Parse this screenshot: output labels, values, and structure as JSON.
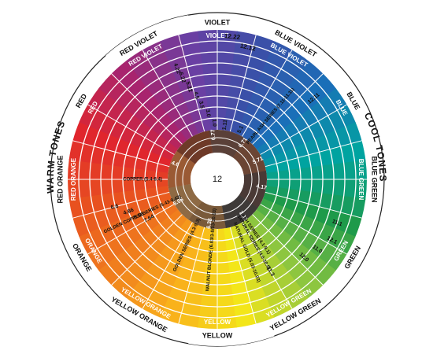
{
  "tone_groups": [
    {
      "id": "warm",
      "label": "WARM TONES"
    },
    {
      "id": "cool",
      "label": "COOL TONES"
    }
  ],
  "sectors": [
    {
      "id": "violet",
      "label": "VIOLET",
      "color": "#6a3fa3",
      "label_color": "#ffffff"
    },
    {
      "id": "blue-violet",
      "label": "BLUE VIOLET",
      "color": "#3a50a8",
      "label_color": "#ffffff"
    },
    {
      "id": "blue",
      "label": "BLUE",
      "color": "#1a6fb8",
      "label_color": "#ffffff"
    },
    {
      "id": "blue-green",
      "label": "BLUE GREEN",
      "color": "#00a3a0",
      "label_color": "#ffffff"
    },
    {
      "id": "green",
      "label": "GREEN",
      "color": "#1e9a4a",
      "label_color": "#ffffff"
    },
    {
      "id": "yellow-green",
      "label": "YELLOW GREEN",
      "color": "#8dc63f",
      "label_color": "#ffffff"
    },
    {
      "id": "yellow",
      "label": "YELLOW",
      "color": "#f3e619",
      "label_color": "#ffffff"
    },
    {
      "id": "yellow-orange",
      "label": "YELLOW ORANGE",
      "color": "#f9b21b",
      "label_color": "#ffffff"
    },
    {
      "id": "orange",
      "label": "ORANGE",
      "color": "#f07e1d",
      "label_color": "#ffffff"
    },
    {
      "id": "red-orange",
      "label": "RED ORANGE",
      "color": "#e8511f",
      "label_color": "#ffffff"
    },
    {
      "id": "red",
      "label": "RED",
      "color": "#e0262d",
      "label_color": "#ffffff"
    },
    {
      "id": "red-violet",
      "label": "RED VIOLET",
      "color": "#a8246e",
      "label_color": "#ffffff"
    }
  ],
  "center_label": "12",
  "shade_codes": [
    "6.77",
    "6.71",
    "5.71",
    "4.17",
    "7.31",
    "6.35",
    "5.06",
    "4.6"
  ],
  "ray_codes": [
    "4.22",
    "6.22",
    "5.22",
    "4.5",
    "3.5",
    "3.0",
    "1.0",
    "1.11",
    "5.1",
    "12.11",
    "11.1",
    "12.1",
    "11.0",
    "12.0",
    "11.3",
    "6.6",
    "4.66",
    "5.56",
    "7.64"
  ],
  "edge_codes": [
    "12.22",
    "12.12"
  ],
  "series_names": [
    "ASH SERIES (4.1-9.1)",
    "NATURAL SERIES (4.0-10.0)",
    "NATURAL GOLD (5.03-10.03)",
    "WALNUT BLONDE (6.03/3-8/03-10.03)",
    "GOLDEN SERIES (4.3-9.3)",
    "GOLDEN COPPER SERIES (5.43-9.43)",
    "COPPER (5.4-8.4)",
    "PEARL ASH SERIES (7.11-11.11)"
  ]
}
